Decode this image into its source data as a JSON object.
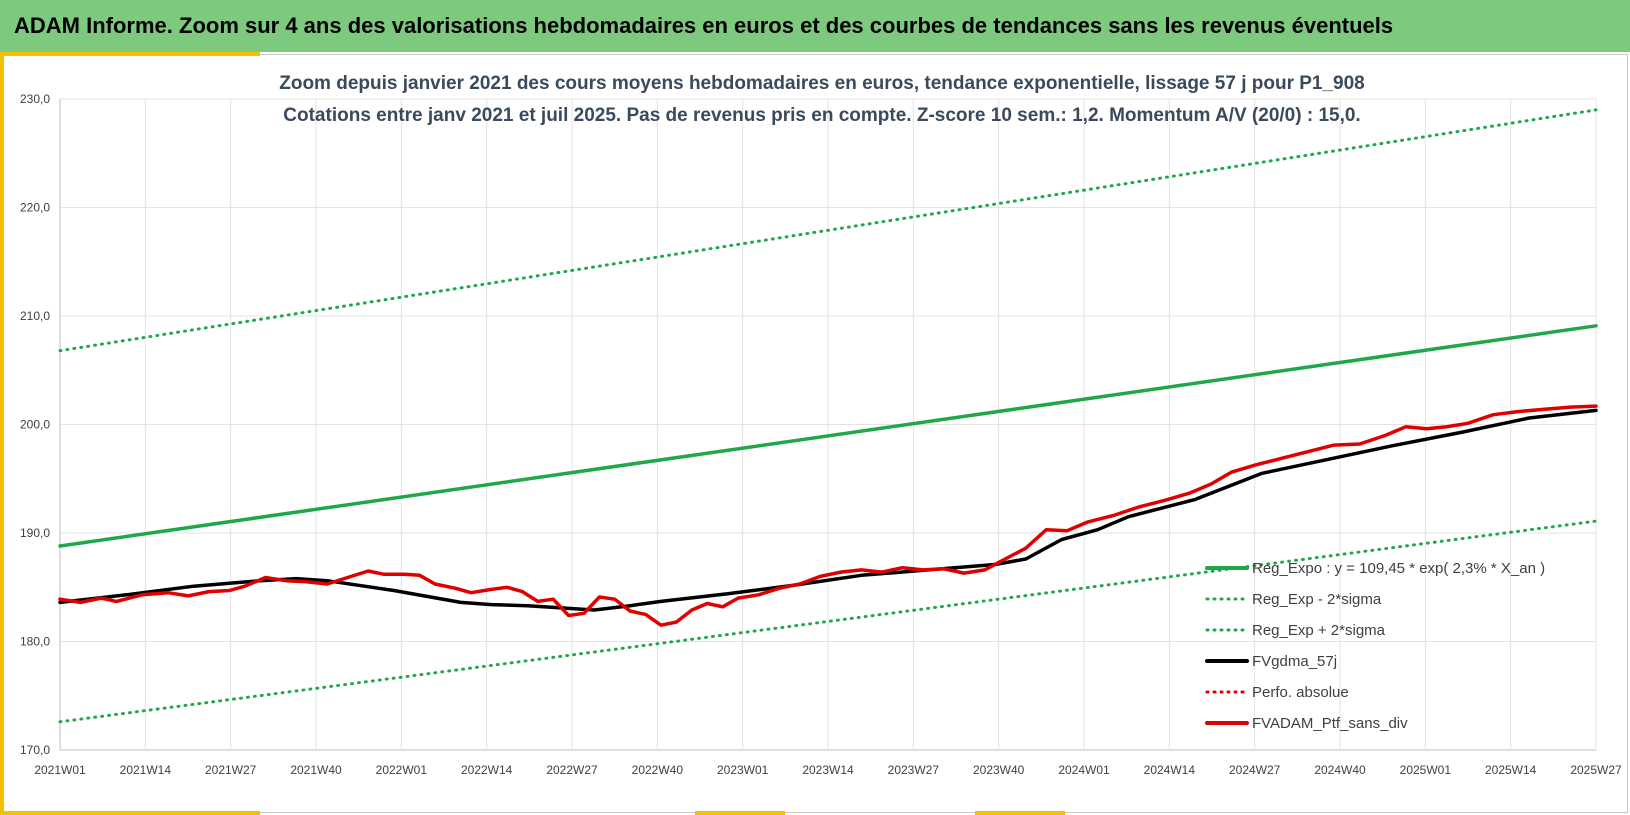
{
  "header": {
    "title": "ADAM Informe. Zoom sur 4 ans des valorisations hebdomadaires en euros et des courbes de tendances sans les revenus éventuels"
  },
  "chart_data": {
    "type": "line",
    "title_line1": "Zoom depuis janvier 2021 des cours moyens hebdomadaires  en euros, tendance exponentielle, lissage 57 j pour P1_908",
    "title_line2": "Cotations entre janv 2021 et juil 2025. Pas de revenus pris en compte. Z-score 10 sem.: 1,2. Momentum A/V (20/0) : 15,0.",
    "xlabel": "",
    "ylabel": "",
    "ylim": [
      170,
      230
    ],
    "yticks": [
      "170,0",
      "180,0",
      "190,0",
      "200,0",
      "210,0",
      "220,0",
      "230,0"
    ],
    "x_range": [
      "2021W01",
      "2025W27"
    ],
    "xticks": [
      "2021W01",
      "2021W14",
      "2021W27",
      "2021W40",
      "2022W01",
      "2022W14",
      "2022W27",
      "2022W40",
      "2023W01",
      "2023W14",
      "2023W27",
      "2023W40",
      "2024W01",
      "2024W14",
      "2024W27",
      "2024W40",
      "2025W01",
      "2025W14",
      "2025W27"
    ],
    "grid": true,
    "legend_position": "bottom-right",
    "series": [
      {
        "name": "Reg_Expo : y = 109,45 * exp( 2,3% *  X_an )",
        "color": "#1fa84a",
        "style": "solid",
        "points": [
          [
            0,
            188.8
          ],
          [
            234,
            209.1
          ]
        ]
      },
      {
        "name": "Reg_Exp - 2*sigma",
        "color": "#1fa84a",
        "style": "dotted",
        "points": [
          [
            0,
            172.6
          ],
          [
            234,
            191.1
          ]
        ]
      },
      {
        "name": "Reg_Exp + 2*sigma",
        "color": "#1fa84a",
        "style": "dotted",
        "points": [
          [
            0,
            206.8
          ],
          [
            234,
            229.0
          ]
        ]
      },
      {
        "name": "FVgdma_57j",
        "color": "#000000",
        "style": "solid",
        "points": [
          [
            0,
            183.6
          ],
          [
            13,
            184.3
          ],
          [
            26,
            185.1
          ],
          [
            39,
            185.6
          ],
          [
            46,
            185.8
          ],
          [
            52,
            185.6
          ],
          [
            65,
            184.7
          ],
          [
            78,
            183.6
          ],
          [
            84,
            183.4
          ],
          [
            91,
            183.3
          ],
          [
            104,
            182.9
          ],
          [
            111,
            183.3
          ],
          [
            117,
            183.7
          ],
          [
            130,
            184.4
          ],
          [
            143,
            185.2
          ],
          [
            156,
            186.1
          ],
          [
            169,
            186.6
          ],
          [
            182,
            187.1
          ],
          [
            188,
            187.6
          ],
          [
            195,
            189.4
          ],
          [
            202,
            190.3
          ],
          [
            208,
            191.5
          ],
          [
            221,
            193.1
          ],
          [
            234,
            195.5
          ],
          [
            247,
            196.8
          ],
          [
            260,
            198.1
          ],
          [
            273,
            199.3
          ],
          [
            286,
            200.6
          ],
          [
            299,
            201.3
          ]
        ]
      },
      {
        "name": "Perfo. absolue",
        "color": "#e00000",
        "style": "dotted",
        "points": []
      },
      {
        "name": "FVADAM_Ptf_sans_div",
        "color": "#e00000",
        "style": "solid",
        "points": [
          [
            0,
            183.9
          ],
          [
            4,
            183.6
          ],
          [
            8,
            184.0
          ],
          [
            11,
            183.7
          ],
          [
            16,
            184.3
          ],
          [
            21,
            184.5
          ],
          [
            25,
            184.2
          ],
          [
            29,
            184.6
          ],
          [
            33,
            184.7
          ],
          [
            36,
            185.1
          ],
          [
            40,
            185.9
          ],
          [
            44,
            185.6
          ],
          [
            48,
            185.5
          ],
          [
            52,
            185.3
          ],
          [
            56,
            185.9
          ],
          [
            60,
            186.5
          ],
          [
            63,
            186.2
          ],
          [
            67,
            186.2
          ],
          [
            70,
            186.1
          ],
          [
            73,
            185.3
          ],
          [
            77,
            184.9
          ],
          [
            80,
            184.5
          ],
          [
            84,
            184.8
          ],
          [
            87,
            185.0
          ],
          [
            90,
            184.6
          ],
          [
            93,
            183.7
          ],
          [
            96,
            183.9
          ],
          [
            99,
            182.4
          ],
          [
            102,
            182.6
          ],
          [
            105,
            184.1
          ],
          [
            108,
            183.9
          ],
          [
            111,
            182.8
          ],
          [
            114,
            182.5
          ],
          [
            117,
            181.5
          ],
          [
            120,
            181.8
          ],
          [
            123,
            182.9
          ],
          [
            126,
            183.5
          ],
          [
            129,
            183.2
          ],
          [
            132,
            184.0
          ],
          [
            136,
            184.3
          ],
          [
            140,
            184.9
          ],
          [
            144,
            185.3
          ],
          [
            148,
            186.0
          ],
          [
            152,
            186.4
          ],
          [
            156,
            186.6
          ],
          [
            160,
            186.4
          ],
          [
            164,
            186.8
          ],
          [
            168,
            186.6
          ],
          [
            172,
            186.7
          ],
          [
            176,
            186.3
          ],
          [
            180,
            186.6
          ],
          [
            184,
            187.6
          ],
          [
            188,
            188.6
          ],
          [
            192,
            190.3
          ],
          [
            196,
            190.2
          ],
          [
            200,
            191.0
          ],
          [
            205,
            191.6
          ],
          [
            210,
            192.4
          ],
          [
            215,
            193.0
          ],
          [
            220,
            193.7
          ],
          [
            224,
            194.5
          ],
          [
            228,
            195.6
          ],
          [
            233,
            196.3
          ],
          [
            238,
            196.9
          ],
          [
            243,
            197.5
          ],
          [
            248,
            198.1
          ],
          [
            253,
            198.2
          ],
          [
            258,
            199.0
          ],
          [
            262,
            199.8
          ],
          [
            266,
            199.6
          ],
          [
            270,
            199.8
          ],
          [
            274,
            200.1
          ],
          [
            279,
            200.9
          ],
          [
            284,
            201.2
          ],
          [
            289,
            201.4
          ],
          [
            294,
            201.6
          ],
          [
            299,
            201.7
          ]
        ]
      }
    ]
  }
}
